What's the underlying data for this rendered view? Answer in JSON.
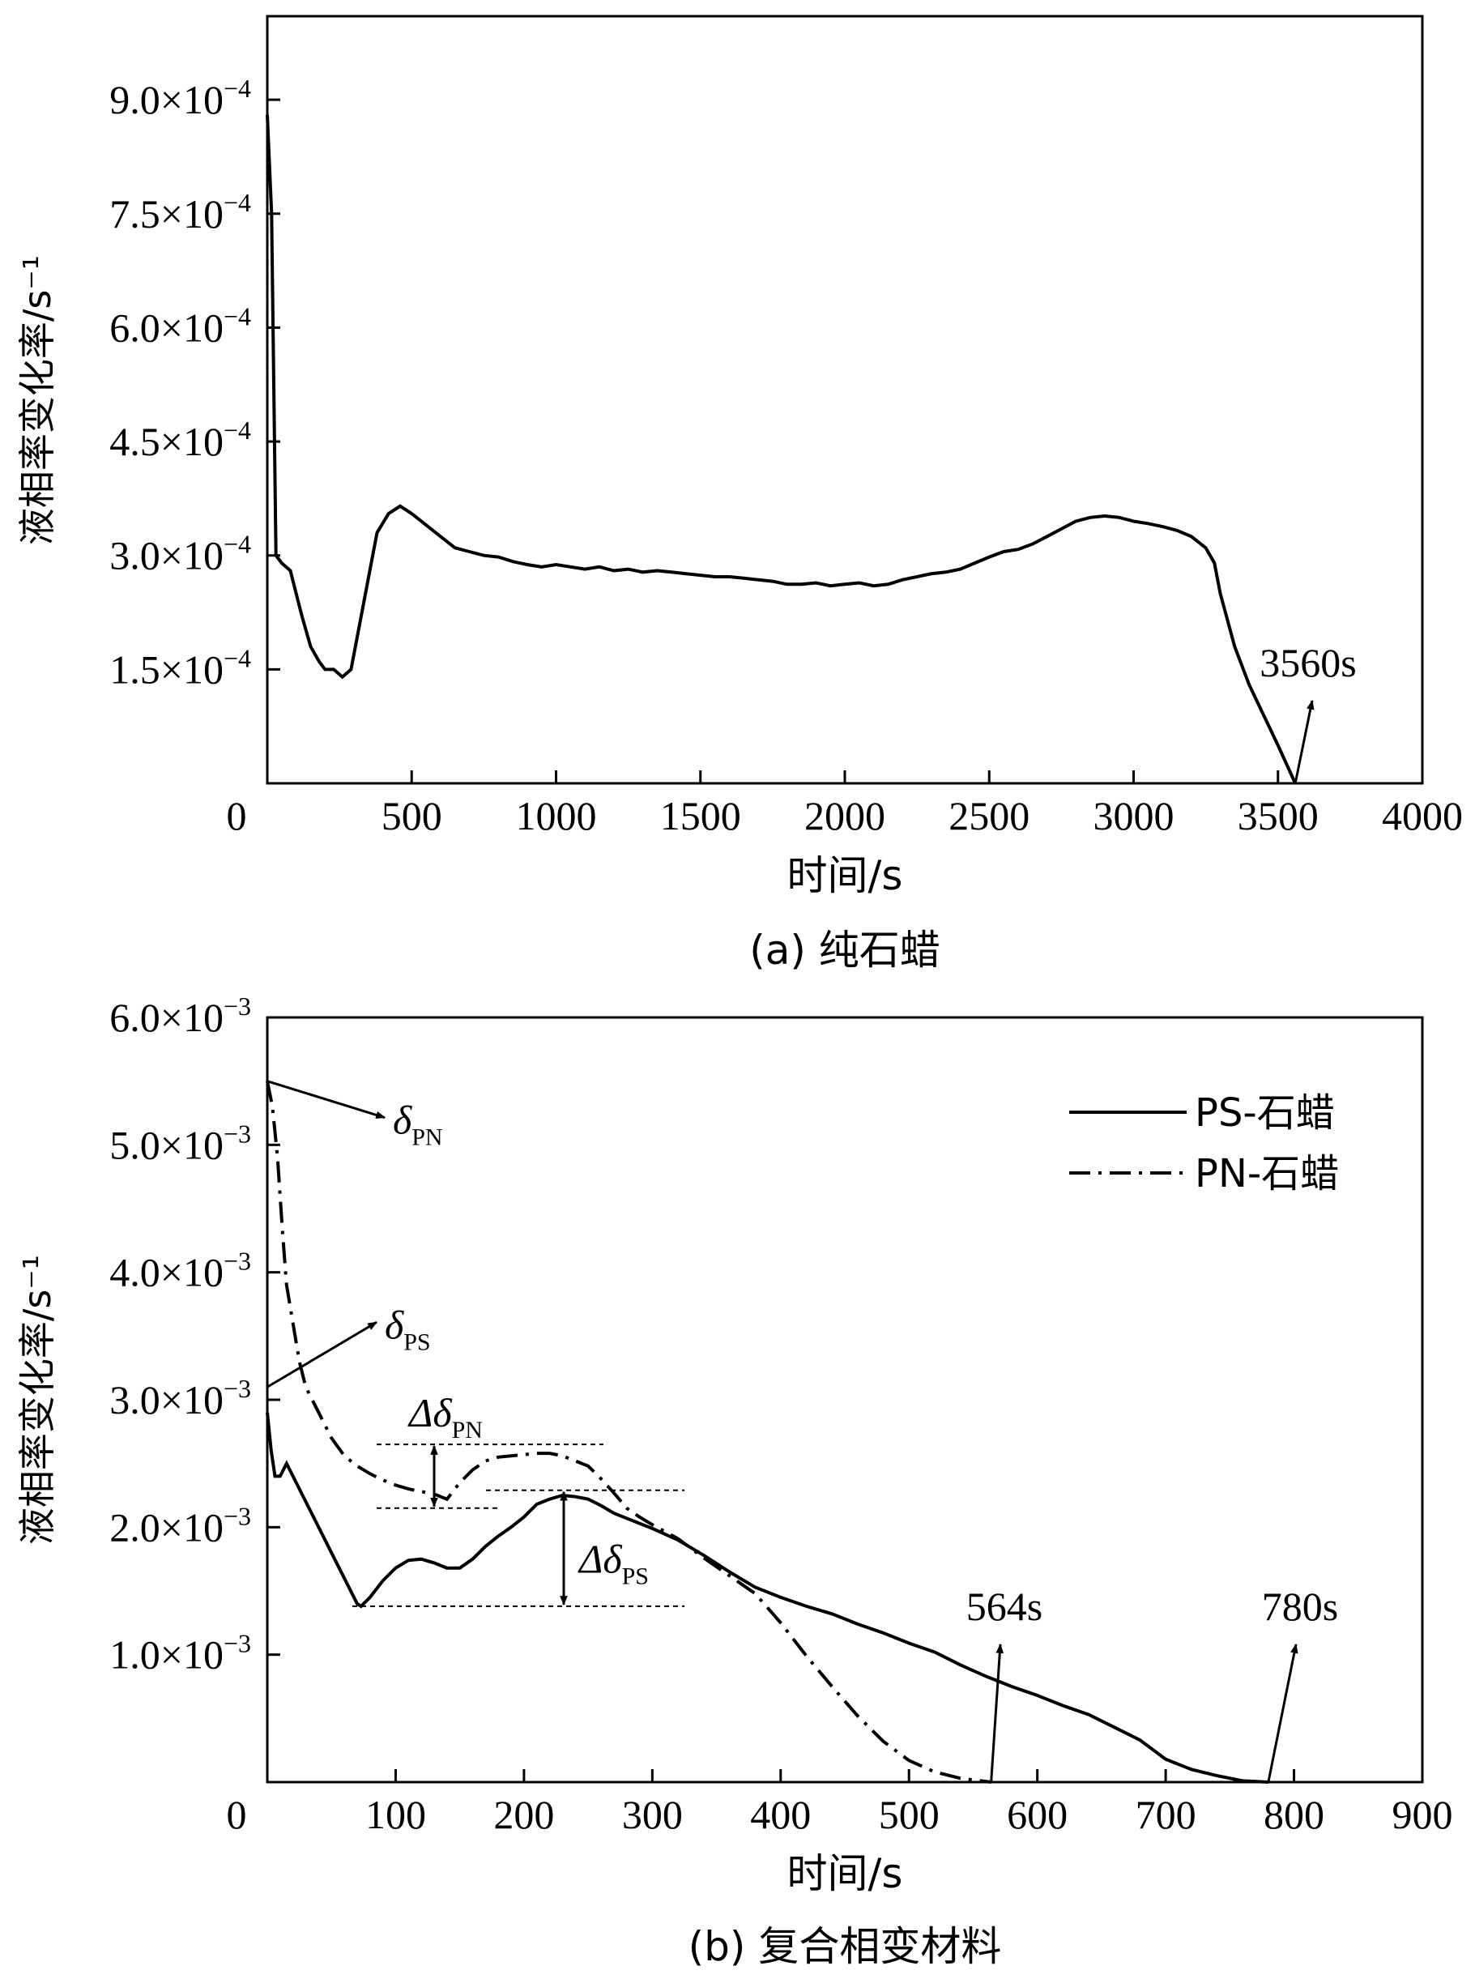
{
  "chart_data": [
    {
      "type": "line",
      "panel": "a",
      "caption": "(a) 纯石蜡",
      "xlabel": "时间/s",
      "ylabel": "液相率变化率/s⁻¹",
      "xlim": [
        0,
        4000
      ],
      "ylim": [
        0,
        0.00101
      ],
      "x_ticks": [
        0,
        500,
        1000,
        1500,
        2000,
        2500,
        3000,
        3500,
        4000
      ],
      "y_ticks": [
        {
          "value": 0.00015,
          "mantissa": "1.5",
          "exp": "−4"
        },
        {
          "value": 0.0003,
          "mantissa": "3.0",
          "exp": "−4"
        },
        {
          "value": 0.00045,
          "mantissa": "4.5",
          "exp": "−4"
        },
        {
          "value": 0.0006,
          "mantissa": "6.0",
          "exp": "−4"
        },
        {
          "value": 0.00075,
          "mantissa": "7.5",
          "exp": "−4"
        },
        {
          "value": 0.0009,
          "mantissa": "9.0",
          "exp": "−4"
        }
      ],
      "series": [
        {
          "style": "solid",
          "x": [
            0,
            15,
            30,
            50,
            80,
            100,
            120,
            150,
            180,
            200,
            230,
            260,
            290,
            320,
            350,
            380,
            420,
            460,
            500,
            550,
            600,
            650,
            700,
            750,
            800,
            850,
            900,
            950,
            1000,
            1050,
            1100,
            1150,
            1200,
            1250,
            1300,
            1350,
            1400,
            1450,
            1500,
            1550,
            1600,
            1650,
            1700,
            1750,
            1800,
            1850,
            1900,
            1950,
            2000,
            2050,
            2100,
            2150,
            2200,
            2250,
            2300,
            2350,
            2400,
            2450,
            2500,
            2550,
            2600,
            2650,
            2700,
            2750,
            2800,
            2850,
            2900,
            2950,
            3000,
            3050,
            3100,
            3150,
            3200,
            3250,
            3280,
            3300,
            3350,
            3400,
            3450,
            3500,
            3560
          ],
          "y": [
            0.00088,
            0.00075,
            0.0003,
            0.00029,
            0.00028,
            0.00025,
            0.00022,
            0.00018,
            0.00016,
            0.00015,
            0.00015,
            0.00014,
            0.00015,
            0.00021,
            0.00027,
            0.00033,
            0.000355,
            0.000365,
            0.000355,
            0.00034,
            0.000325,
            0.00031,
            0.000305,
            0.0003,
            0.000298,
            0.000292,
            0.000288,
            0.000285,
            0.000288,
            0.000285,
            0.000282,
            0.000285,
            0.00028,
            0.000282,
            0.000278,
            0.00028,
            0.000278,
            0.000276,
            0.000274,
            0.000272,
            0.000272,
            0.00027,
            0.000268,
            0.000266,
            0.000262,
            0.000262,
            0.000264,
            0.00026,
            0.000262,
            0.000264,
            0.00026,
            0.000262,
            0.000268,
            0.000272,
            0.000276,
            0.000278,
            0.000282,
            0.00029,
            0.000298,
            0.000305,
            0.000308,
            0.000315,
            0.000325,
            0.000335,
            0.000345,
            0.00035,
            0.000352,
            0.00035,
            0.000345,
            0.000342,
            0.000338,
            0.000333,
            0.000325,
            0.00031,
            0.00029,
            0.00025,
            0.00018,
            0.00013,
            9e-05,
            5e-05,
            0
          ]
        }
      ],
      "annotations": [
        {
          "text": "3560s",
          "target_x": 3560,
          "target_y": 0
        }
      ]
    },
    {
      "type": "line",
      "panel": "b",
      "caption": "(b) 复合相变材料",
      "xlabel": "时间/s",
      "ylabel": "液相率变化率/s⁻¹",
      "xlim": [
        0,
        900
      ],
      "ylim": [
        0,
        0.006
      ],
      "x_ticks": [
        0,
        100,
        200,
        300,
        400,
        500,
        600,
        700,
        800,
        900
      ],
      "y_ticks": [
        {
          "value": 0.001,
          "mantissa": "1.0",
          "exp": "−3"
        },
        {
          "value": 0.002,
          "mantissa": "2.0",
          "exp": "−3"
        },
        {
          "value": 0.003,
          "mantissa": "3.0",
          "exp": "−3"
        },
        {
          "value": 0.004,
          "mantissa": "4.0",
          "exp": "−3"
        },
        {
          "value": 0.005,
          "mantissa": "5.0",
          "exp": "−3"
        },
        {
          "value": 0.006,
          "mantissa": "6.0",
          "exp": "−3"
        }
      ],
      "legend": {
        "position": "top-right"
      },
      "series": [
        {
          "name": "PS-石蜡",
          "style": "solid",
          "x": [
            0,
            3,
            6,
            10,
            15,
            20,
            30,
            40,
            50,
            60,
            70,
            73,
            80,
            90,
            100,
            110,
            120,
            130,
            140,
            150,
            160,
            170,
            180,
            190,
            200,
            210,
            220,
            230,
            240,
            250,
            260,
            270,
            280,
            290,
            300,
            320,
            340,
            360,
            380,
            400,
            420,
            440,
            460,
            480,
            500,
            520,
            540,
            560,
            580,
            600,
            620,
            640,
            660,
            680,
            700,
            720,
            740,
            760,
            780
          ],
          "y": [
            0.0029,
            0.0026,
            0.0024,
            0.0024,
            0.0025,
            0.0024,
            0.0022,
            0.002,
            0.0018,
            0.0016,
            0.0014,
            0.00138,
            0.00145,
            0.00158,
            0.00168,
            0.00174,
            0.00175,
            0.00172,
            0.00168,
            0.00168,
            0.00175,
            0.00185,
            0.00193,
            0.002,
            0.00208,
            0.00218,
            0.00222,
            0.00225,
            0.00224,
            0.00222,
            0.00217,
            0.00211,
            0.00207,
            0.00203,
            0.00199,
            0.0019,
            0.00178,
            0.00165,
            0.00153,
            0.00145,
            0.00138,
            0.00132,
            0.00124,
            0.00117,
            0.00109,
            0.00102,
            0.00092,
            0.00083,
            0.00075,
            0.00068,
            0.0006,
            0.00053,
            0.00043,
            0.00033,
            0.00018,
            0.0001,
            5e-05,
            1e-05,
            0
          ]
        },
        {
          "name": "PN-石蜡",
          "style": "dash-dot",
          "x": [
            0,
            2,
            4,
            6,
            8,
            10,
            12,
            15,
            20,
            25,
            30,
            40,
            50,
            60,
            70,
            80,
            90,
            100,
            110,
            120,
            130,
            140,
            150,
            160,
            170,
            180,
            190,
            200,
            210,
            220,
            230,
            240,
            250,
            260,
            270,
            280,
            290,
            300,
            320,
            340,
            360,
            380,
            400,
            420,
            440,
            460,
            480,
            500,
            520,
            540,
            564
          ],
          "y": [
            0.0055,
            0.0054,
            0.0053,
            0.0051,
            0.0049,
            0.0046,
            0.0043,
            0.0039,
            0.0036,
            0.0033,
            0.0031,
            0.0029,
            0.0027,
            0.00256,
            0.00248,
            0.00242,
            0.00237,
            0.00233,
            0.0023,
            0.00228,
            0.00226,
            0.00222,
            0.00235,
            0.00245,
            0.00252,
            0.00255,
            0.00256,
            0.00257,
            0.00258,
            0.00258,
            0.00256,
            0.00252,
            0.00248,
            0.00238,
            0.00227,
            0.00215,
            0.00208,
            0.00202,
            0.00191,
            0.00176,
            0.00162,
            0.00148,
            0.00125,
            0.00099,
            0.00075,
            0.00052,
            0.00032,
            0.00017,
            8e-05,
            3e-05,
            0
          ]
        }
      ],
      "annotations": [
        {
          "text": "δ",
          "sub": "PN",
          "kind": "arrow-from-axis",
          "data_y": 0.0055
        },
        {
          "text": "δ",
          "sub": "PS",
          "kind": "arrow-from-axis",
          "data_y": 0.0031
        },
        {
          "text": "Δδ",
          "sub": "PN",
          "kind": "range",
          "y_low": 0.00215,
          "y_high": 0.00265
        },
        {
          "text": "Δδ",
          "sub": "PS",
          "kind": "range",
          "y_low": 0.00138,
          "y_high": 0.00229
        },
        {
          "text": "564s",
          "target_x": 564,
          "target_y": 0
        },
        {
          "text": "780s",
          "target_x": 780,
          "target_y": 0
        }
      ]
    }
  ]
}
